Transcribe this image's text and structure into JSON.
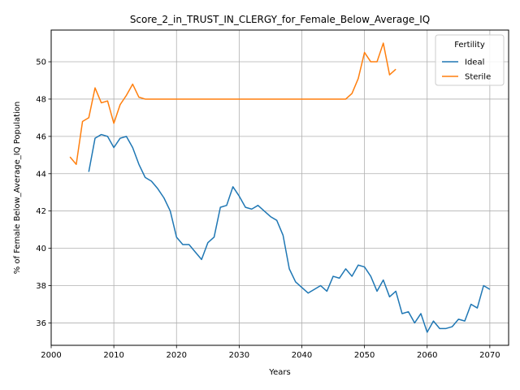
{
  "chart_data": {
    "type": "line",
    "title": "Score_2_in_TRUST_IN_CLERGY_for_Female_Below_Average_IQ",
    "xlabel": "Years",
    "ylabel": "% of Female Below_Average_IQ Population",
    "xlim": [
      2000,
      2073
    ],
    "ylim": [
      34.8,
      51.7
    ],
    "xticks": [
      2000,
      2010,
      2020,
      2030,
      2040,
      2050,
      2060,
      2070
    ],
    "yticks": [
      36,
      38,
      40,
      42,
      44,
      46,
      48,
      50
    ],
    "grid": true,
    "legend": {
      "title": "Fertility",
      "placement": "top-right"
    },
    "series": [
      {
        "name": "Ideal",
        "color": "#1f77b4",
        "x": [
          2006,
          2007,
          2008,
          2009,
          2010,
          2011,
          2012,
          2013,
          2014,
          2015,
          2016,
          2017,
          2018,
          2019,
          2020,
          2021,
          2022,
          2023,
          2024,
          2025,
          2026,
          2027,
          2028,
          2029,
          2030,
          2031,
          2032,
          2033,
          2034,
          2035,
          2036,
          2037,
          2038,
          2039,
          2040,
          2041,
          2042,
          2043,
          2044,
          2045,
          2046,
          2047,
          2048,
          2049,
          2050,
          2051,
          2052,
          2053,
          2054,
          2055,
          2056,
          2057,
          2058,
          2059,
          2060,
          2061,
          2062,
          2063,
          2064,
          2065,
          2066,
          2067,
          2068,
          2069,
          2070
        ],
        "values": [
          44.1,
          45.9,
          46.1,
          46.0,
          45.4,
          45.9,
          46.0,
          45.4,
          44.5,
          43.8,
          43.6,
          43.2,
          42.7,
          42.0,
          40.6,
          40.2,
          40.2,
          39.8,
          39.4,
          40.3,
          40.6,
          42.2,
          42.3,
          43.3,
          42.8,
          42.2,
          42.1,
          42.3,
          42.0,
          41.7,
          41.5,
          40.7,
          38.9,
          38.2,
          37.9,
          37.6,
          37.8,
          38.0,
          37.7,
          38.5,
          38.4,
          38.9,
          38.5,
          39.1,
          39.0,
          38.5,
          37.7,
          38.3,
          37.4,
          37.7,
          36.5,
          36.6,
          36.0,
          36.5,
          35.5,
          36.1,
          35.7,
          35.7,
          35.8,
          36.2,
          36.1,
          37.0,
          36.8,
          38.0,
          37.8
        ]
      },
      {
        "name": "Sterile",
        "color": "#ff7f0e",
        "x": [
          2003,
          2004,
          2005,
          2006,
          2007,
          2008,
          2009,
          2010,
          2011,
          2012,
          2013,
          2014,
          2015,
          2016,
          2017,
          2018,
          2019,
          2020,
          2021,
          2022,
          2023,
          2024,
          2025,
          2026,
          2027,
          2028,
          2029,
          2030,
          2031,
          2032,
          2033,
          2034,
          2035,
          2036,
          2037,
          2038,
          2039,
          2040,
          2041,
          2042,
          2043,
          2044,
          2045,
          2046,
          2047,
          2048,
          2049,
          2050,
          2051,
          2052,
          2053,
          2054,
          2055
        ],
        "values": [
          44.9,
          44.5,
          46.8,
          47.0,
          48.6,
          47.8,
          47.9,
          46.7,
          47.7,
          48.2,
          48.8,
          48.1,
          48.0,
          48.0,
          48.0,
          48.0,
          48.0,
          48.0,
          48.0,
          48.0,
          48.0,
          48.0,
          48.0,
          48.0,
          48.0,
          48.0,
          48.0,
          48.0,
          48.0,
          48.0,
          48.0,
          48.0,
          48.0,
          48.0,
          48.0,
          48.0,
          48.0,
          48.0,
          48.0,
          48.0,
          48.0,
          48.0,
          48.0,
          48.0,
          48.0,
          48.3,
          49.1,
          50.5,
          50.0,
          50.0,
          51.0,
          49.3,
          49.6
        ]
      }
    ]
  }
}
